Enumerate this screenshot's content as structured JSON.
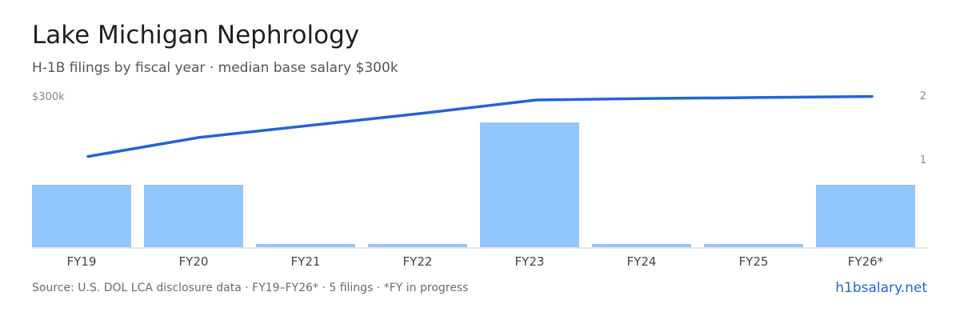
{
  "header": {
    "title": "Lake Michigan Nephrology",
    "subtitle": "H-1B filings by fiscal year · median base salary $300k"
  },
  "footer": {
    "source": "Source: U.S. DOL LCA disclosure data · FY19–FY26* · 5 filings · *FY in progress",
    "brand": "h1bsalary.net"
  },
  "colors": {
    "bar": "#93c5fd",
    "line": "#2563d6",
    "axis": "#d0d0d0",
    "tick_text": "#888888",
    "category_text": "#444444"
  },
  "chart_data": {
    "type": "bar",
    "categories": [
      "FY19",
      "FY20",
      "FY21",
      "FY22",
      "FY23",
      "FY24",
      "FY25",
      "FY26*"
    ],
    "series": [
      {
        "type": "bar",
        "axis": "right",
        "values": [
          1,
          1,
          0,
          0,
          2,
          0,
          0,
          1
        ]
      },
      {
        "type": "line",
        "axis": "left",
        "values": [
          180000,
          218000,
          242000,
          266000,
          292000,
          295000,
          297000,
          299000
        ]
      }
    ],
    "y_left": {
      "tick_labels": [
        "$300k"
      ],
      "range": [
        0,
        300000
      ]
    },
    "y_right": {
      "tick_labels": [
        "2",
        "1"
      ],
      "range": [
        0,
        2
      ]
    },
    "grid": false,
    "legend": "none"
  }
}
